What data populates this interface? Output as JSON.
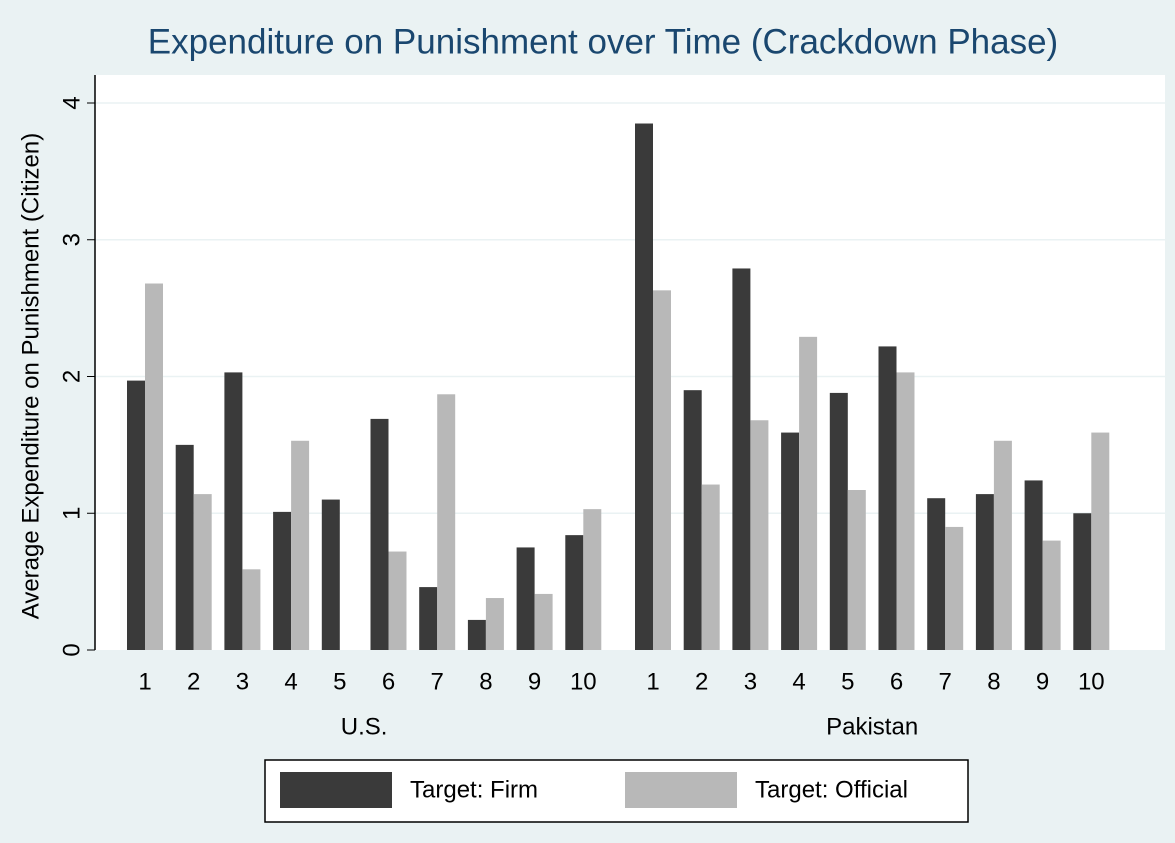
{
  "chart_data": {
    "type": "bar",
    "title": "Expenditure on Punishment over Time (Crackdown Phase)",
    "y_label": "Average Expenditure on Punishment (Citizen)",
    "categories": [
      "1",
      "2",
      "3",
      "4",
      "5",
      "6",
      "7",
      "8",
      "9",
      "10"
    ],
    "groups": [
      "U.S.",
      "Pakistan"
    ],
    "series": [
      {
        "name": "Target: Firm",
        "color": "#3a3a3a",
        "values": [
          [
            1.97,
            1.5,
            2.03,
            1.01,
            1.1,
            1.69,
            0.46,
            0.22,
            0.75,
            0.84
          ],
          [
            3.85,
            1.9,
            2.79,
            1.59,
            1.88,
            2.22,
            1.11,
            1.14,
            1.24,
            1.0
          ]
        ]
      },
      {
        "name": "Target: Official",
        "color": "#b8b8b8",
        "values": [
          [
            2.68,
            1.14,
            0.59,
            1.53,
            null,
            0.72,
            1.87,
            0.38,
            0.41,
            1.03
          ],
          [
            2.63,
            1.21,
            1.68,
            2.29,
            1.17,
            2.03,
            0.9,
            1.53,
            0.8,
            1.59
          ]
        ]
      }
    ],
    "ylim": [
      0,
      4
    ],
    "yticks": [
      0,
      1,
      2,
      3,
      4
    ],
    "grid": true,
    "legend": "bottom"
  }
}
